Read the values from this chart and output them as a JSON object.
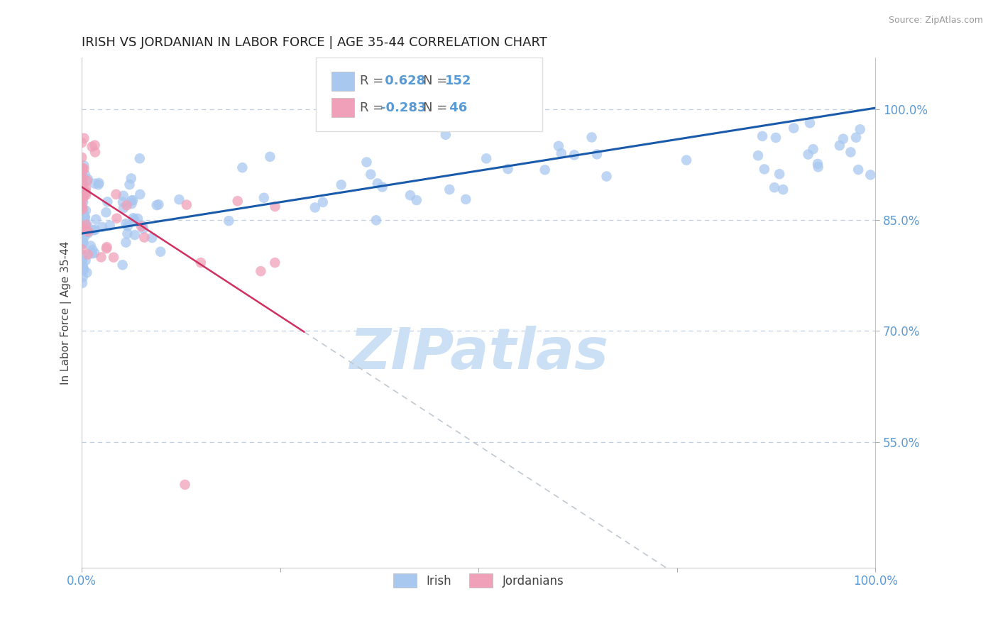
{
  "title": "IRISH VS JORDANIAN IN LABOR FORCE | AGE 35-44 CORRELATION CHART",
  "source_text": "Source: ZipAtlas.com",
  "ylabel": "In Labor Force | Age 35-44",
  "xlim": [
    0.0,
    1.0
  ],
  "ylim": [
    0.38,
    1.07
  ],
  "ytick_vals": [
    0.55,
    0.7,
    0.85,
    1.0
  ],
  "ytick_labels": [
    "55.0%",
    "70.0%",
    "85.0%",
    "100.0%"
  ],
  "irish_R": 0.628,
  "irish_N": 152,
  "jordanian_R": -0.283,
  "jordanian_N": 46,
  "irish_color": "#a8c8f0",
  "irish_line_color": "#1a5aaa",
  "jordanian_color": "#f0a0b8",
  "jordanian_line_color": "#d03060",
  "watermark": "ZIPatlas",
  "watermark_color": "#cce0f5",
  "axis_color": "#5a9ad4",
  "grid_color": "#c0cfe0",
  "title_color": "#222222",
  "source_color": "#999999",
  "ylabel_color": "#444444",
  "tick_color": "#5a9ad4"
}
